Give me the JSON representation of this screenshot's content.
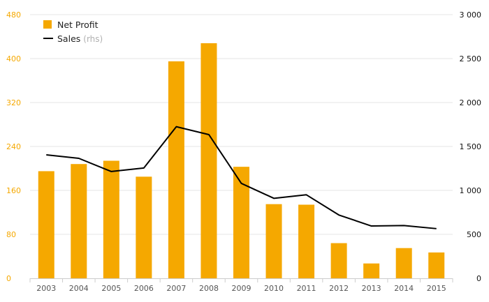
{
  "chart_data": {
    "type": "bar",
    "categories": [
      "2003",
      "2004",
      "2005",
      "2006",
      "2007",
      "2008",
      "2009",
      "2010",
      "2011",
      "2012",
      "2013",
      "2014",
      "2015"
    ],
    "series": [
      {
        "name": "Net Profit",
        "type": "bar",
        "axis": "left",
        "color": "#f5a800",
        "values": [
          195,
          208,
          214,
          185,
          395,
          428,
          203,
          135,
          134,
          64,
          27,
          55,
          47
        ]
      },
      {
        "name": "Sales",
        "name_suffix": "(rhs)",
        "type": "line",
        "axis": "right",
        "color": "#000000",
        "values": [
          1405,
          1365,
          1215,
          1255,
          1725,
          1635,
          1080,
          910,
          950,
          720,
          595,
          600,
          565
        ]
      }
    ],
    "y_left": {
      "min": 0,
      "max": 480,
      "ticks": [
        0,
        80,
        160,
        240,
        320,
        400,
        480
      ],
      "tick_labels": [
        "0",
        "80",
        "160",
        "240",
        "320",
        "400",
        "480"
      ]
    },
    "y_right": {
      "min": 0,
      "max": 3000,
      "ticks": [
        0,
        500,
        1000,
        1500,
        2000,
        2500,
        3000
      ],
      "tick_labels": [
        "0",
        "500",
        "1 000",
        "1 500",
        "2 000",
        "2 500",
        "3 000"
      ]
    },
    "grid": true,
    "legend": "top-left",
    "title": "",
    "xlabel": "",
    "ylabel": ""
  }
}
